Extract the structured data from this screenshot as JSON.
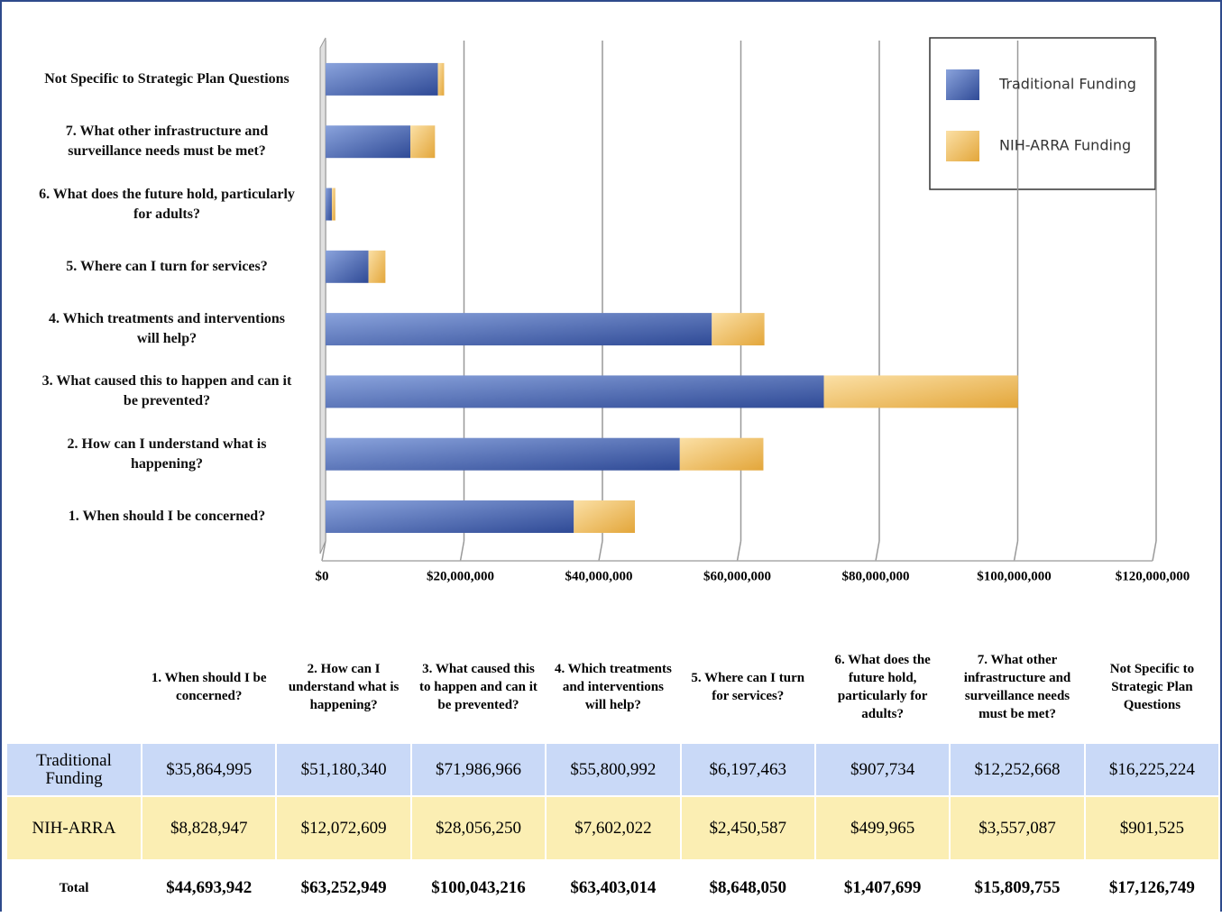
{
  "chart_data": {
    "type": "hbar_stacked",
    "categories": [
      "1. When should I be concerned?",
      "2. How can I understand what is happening?",
      "3. What caused this to happen and can it be prevented?",
      "4. Which treatments and interventions will help?",
      "5. Where can I turn for services?",
      "6. What does the future hold, particularly for adults?",
      "7. What other infrastructure and surveillance needs must be met?",
      "Not Specific to Strategic Plan Questions"
    ],
    "series": [
      {
        "name": "Traditional Funding",
        "color": "#3d5aa8",
        "values": [
          35864995,
          51180340,
          71986966,
          55800992,
          6197463,
          907734,
          12252668,
          16225224
        ],
        "value_labels": [
          "$35,864,995",
          "$51,180,340",
          "$71,986,966",
          "$55,800,992",
          "$6,197,463",
          "$907,734",
          "$12,252,668",
          "$16,225,224"
        ]
      },
      {
        "name": "NIH-ARRA Funding",
        "color": "#e8b04a",
        "values": [
          8828947,
          12072609,
          28056250,
          7602022,
          2450587,
          499965,
          3557087,
          901525
        ],
        "value_labels": [
          "$8,828,947",
          "$12,072,609",
          "$28,056,250",
          "$7,602,022",
          "$2,450,587",
          "$499,965",
          "$3,557,087",
          "$901,525"
        ]
      }
    ],
    "xlim": [
      0,
      120000000
    ],
    "xticks": [
      {
        "value": 0,
        "label": "$0"
      },
      {
        "value": 20000000,
        "label": "$20,000,000"
      },
      {
        "value": 40000000,
        "label": "$40,000,000"
      },
      {
        "value": 60000000,
        "label": "$60,000,000"
      },
      {
        "value": 80000000,
        "label": "$80,000,000"
      },
      {
        "value": 100000000,
        "label": "$100,000,000"
      },
      {
        "value": 120000000,
        "label": "$120,000,000"
      }
    ],
    "grid": true,
    "legend": "upper right",
    "table": {
      "row_labels": [
        "Traditional Funding",
        "NIH-ARRA",
        "Total"
      ],
      "totals": [
        "$44,693,942",
        "$63,252,949",
        "$100,043,216",
        "$63,403,014",
        "$8,648,050",
        "$1,407,699",
        "$15,809,755",
        "$17,126,749"
      ]
    }
  }
}
